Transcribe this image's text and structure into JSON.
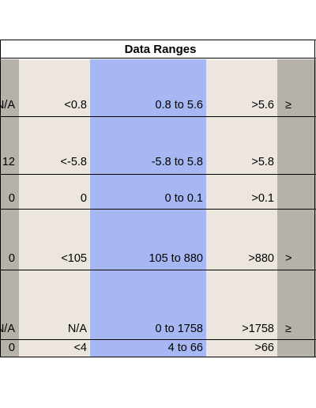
{
  "table": {
    "title": "Data Ranges",
    "rows": [
      {
        "left": "N/A",
        "a": "<0.8",
        "blue": "0.8 to 5.6",
        "b": ">5.6",
        "right": "≥"
      },
      {
        "left": "12",
        "a": "<-5.8",
        "blue": "-5.8 to 5.8",
        "b": ">5.8",
        "right": ""
      },
      {
        "left": "0",
        "a": "0",
        "blue": "0 to 0.1",
        "b": ">0.1",
        "right": ""
      },
      {
        "left": "0",
        "a": "<105",
        "blue": "105 to 880",
        "b": ">880",
        "right": ">"
      },
      {
        "left": "N/A",
        "a": "N/A",
        "blue": "0 to 1758",
        "b": ">1758",
        "right": "≥"
      },
      {
        "left": "0",
        "a": "<4",
        "blue": "4  to 66",
        "b": ">66",
        "right": ""
      }
    ]
  },
  "colors": {
    "gray": "#b7b2a9",
    "beige": "#ece6df",
    "blue": "#a6b7f3",
    "line": "#000000"
  }
}
